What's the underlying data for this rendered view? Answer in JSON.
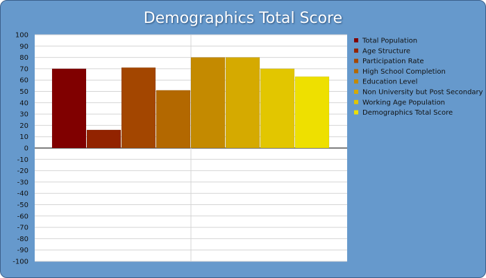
{
  "chart_data": {
    "type": "bar",
    "title": "Demographics Total Score",
    "categories": [
      "Total Population",
      "Age Structure",
      "Participation Rate",
      "High School Completion",
      "Education Level",
      "Non University but Post Secondary",
      "Working Age Population",
      "Demographics Total Score"
    ],
    "values": [
      70,
      16,
      71,
      51,
      80,
      80,
      70,
      63
    ],
    "colors": [
      "#800000",
      "#922300",
      "#a34600",
      "#b36800",
      "#c48a00",
      "#d5aa00",
      "#e2c600",
      "#eee000"
    ],
    "ylim": [
      -100,
      100
    ],
    "yticks": [
      100,
      90,
      80,
      70,
      60,
      50,
      40,
      30,
      20,
      10,
      0,
      -10,
      -20,
      -30,
      -40,
      -50,
      -60,
      -70,
      -80,
      -90,
      -100
    ],
    "xlabel": "",
    "ylabel": "",
    "grid": true,
    "legend_position": "right"
  }
}
